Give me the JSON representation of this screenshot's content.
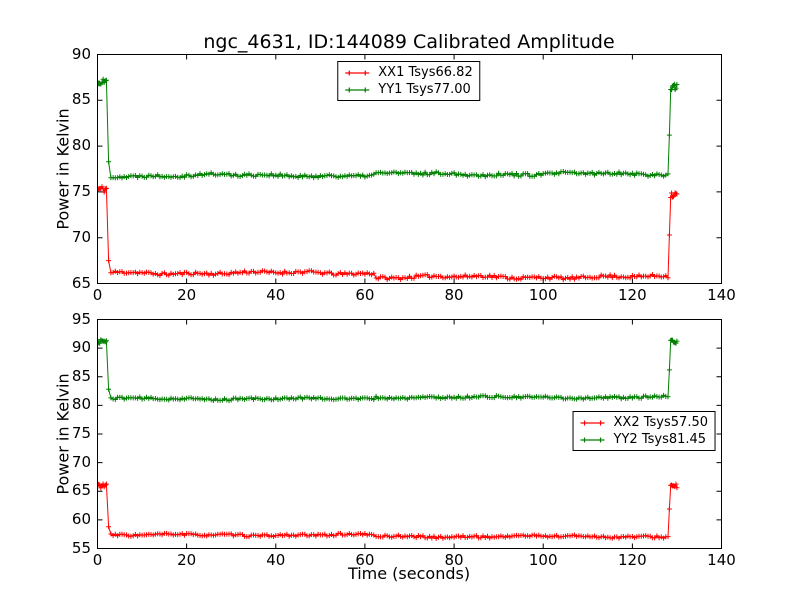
{
  "figure": {
    "background": "#ffffff",
    "title": "ngc_4631, ID:144089 Calibrated Amplitude"
  },
  "chart_data": [
    {
      "type": "line",
      "id": "top-subplot",
      "title": "ngc_4631, ID:144089 Calibrated Amplitude",
      "xlabel": "",
      "ylabel": "Power in Kelvin",
      "xlim": [
        0,
        140
      ],
      "ylim": [
        65,
        90
      ],
      "xticks": [
        0,
        20,
        40,
        60,
        80,
        100,
        120,
        140
      ],
      "yticks": [
        65,
        70,
        75,
        80,
        85,
        90
      ],
      "grid": false,
      "legend": {
        "position": "upper center",
        "entries": [
          {
            "label": "XX1 Tsys66.82",
            "color": "#ff0000"
          },
          {
            "label": "YY1 Tsys77.00",
            "color": "#007f00"
          }
        ]
      },
      "series": [
        {
          "name": "XX1",
          "label": "XX1 Tsys66.82",
          "tsys": 66.82,
          "color": "#ff0000",
          "marker": "+",
          "sample_interval_s": 0.5,
          "noise": 0.17,
          "cal_noise": 0.38,
          "seed": 11,
          "phases": {
            "start_cal": {
              "t": [
                0,
                2.0
              ],
              "level": 75.3
            },
            "drop": {
              "t": 2.5,
              "value": 67.5
            },
            "flat1": {
              "t": [
                3.0,
                62.0
              ],
              "level": 66.15
            },
            "flat2": {
              "t": [
                62.5,
                128.0
              ],
              "level": 65.7
            },
            "rise": {
              "t": 128.3,
              "value": 70.3
            },
            "end_cal": {
              "t": [
                128.6,
                130.0
              ],
              "level": 74.7
            }
          }
        },
        {
          "name": "YY1",
          "label": "YY1 Tsys77.00",
          "tsys": 77.0,
          "color": "#007f00",
          "marker": "+",
          "sample_interval_s": 0.5,
          "noise": 0.17,
          "cal_noise": 0.38,
          "seed": 22,
          "phases": {
            "start_cal": {
              "t": [
                0,
                2.0
              ],
              "level": 87.0
            },
            "drop": {
              "t": 2.5,
              "value": 78.3
            },
            "flat1": {
              "t": [
                3.0,
                62.0
              ],
              "level": 76.8
            },
            "flat2": {
              "t": [
                62.5,
                128.0
              ],
              "level": 76.95
            },
            "rise": {
              "t": 128.3,
              "value": 81.2
            },
            "end_cal": {
              "t": [
                128.6,
                130.0
              ],
              "level": 86.5
            }
          }
        }
      ]
    },
    {
      "type": "line",
      "id": "bottom-subplot",
      "title": "",
      "xlabel": "Time (seconds)",
      "ylabel": "Power in Kelvin",
      "xlim": [
        0,
        140
      ],
      "ylim": [
        55,
        95
      ],
      "xticks": [
        0,
        20,
        40,
        60,
        80,
        100,
        120,
        140
      ],
      "yticks": [
        55,
        60,
        65,
        70,
        75,
        80,
        85,
        90,
        95
      ],
      "grid": false,
      "legend": {
        "position": "center right",
        "entries": [
          {
            "label": "XX2 Tsys57.50",
            "color": "#ff0000"
          },
          {
            "label": "YY2 Tsys81.45",
            "color": "#007f00"
          }
        ]
      },
      "series": [
        {
          "name": "XX2",
          "label": "XX2 Tsys57.50",
          "tsys": 57.5,
          "color": "#ff0000",
          "marker": "+",
          "sample_interval_s": 0.5,
          "noise": 0.2,
          "cal_noise": 0.42,
          "seed": 33,
          "phases": {
            "start_cal": {
              "t": [
                0,
                2.0
              ],
              "level": 66.0
            },
            "drop": {
              "t": 2.5,
              "value": 58.8
            },
            "flat1": {
              "t": [
                3.0,
                62.0
              ],
              "level": 57.35
            },
            "flat2": {
              "t": [
                62.5,
                128.0
              ],
              "level": 57.1
            },
            "rise": {
              "t": 128.3,
              "value": 61.9
            },
            "end_cal": {
              "t": [
                128.6,
                130.0
              ],
              "level": 65.9
            }
          }
        },
        {
          "name": "YY2",
          "label": "YY2 Tsys81.45",
          "tsys": 81.45,
          "color": "#007f00",
          "marker": "+",
          "sample_interval_s": 0.5,
          "noise": 0.2,
          "cal_noise": 0.42,
          "seed": 44,
          "phases": {
            "start_cal": {
              "t": [
                0,
                2.0
              ],
              "level": 91.2
            },
            "drop": {
              "t": 2.5,
              "value": 82.8
            },
            "flat1": {
              "t": [
                3.0,
                62.0
              ],
              "level": 81.15
            },
            "flat2": {
              "t": [
                62.5,
                128.0
              ],
              "level": 81.4
            },
            "rise": {
              "t": 128.3,
              "value": 86.2
            },
            "end_cal": {
              "t": [
                128.6,
                130.0
              ],
              "level": 91.0
            }
          }
        }
      ]
    }
  ]
}
